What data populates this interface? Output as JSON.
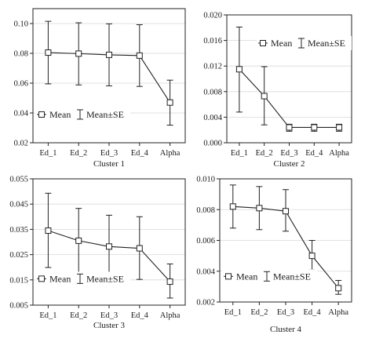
{
  "chart_data": [
    {
      "type": "line",
      "title": "Cluster 1",
      "categories": [
        "Ed_1",
        "Ed_2",
        "Ed_3",
        "Ed_4",
        "Alpha"
      ],
      "series": [
        {
          "values": [
            0.0805,
            0.0798,
            0.079,
            0.0785,
            0.047
          ],
          "err_low": [
            0.0595,
            0.0588,
            0.0582,
            0.0578,
            0.0318
          ],
          "err_high": [
            0.1015,
            0.1005,
            0.0998,
            0.0992,
            0.062
          ]
        }
      ],
      "yticks": [
        "0.02",
        "0.04",
        "0.06",
        "0.08",
        "0.10"
      ],
      "ylim": [
        0.02,
        0.11
      ],
      "grid": true,
      "legend": {
        "mean_label": "Mean",
        "se_label": "Mean±SE",
        "position": "bottom-left"
      }
    },
    {
      "type": "line",
      "title": "Cluster 2",
      "categories": [
        "Ed_1",
        "Ed_2",
        "Ed_3",
        "Ed_4",
        "Alpha"
      ],
      "series": [
        {
          "values": [
            0.0115,
            0.0073,
            0.0024,
            0.0024,
            0.0024
          ],
          "err_low": [
            0.0048,
            0.0028,
            0.0018,
            0.0018,
            0.0018
          ],
          "err_high": [
            0.0181,
            0.0119,
            0.0029,
            0.0029,
            0.0029
          ]
        }
      ],
      "yticks": [
        "0.000",
        "0.004",
        "0.008",
        "0.012",
        "0.016",
        "0.020"
      ],
      "ylim": [
        0.0,
        0.02
      ],
      "grid": true,
      "legend": {
        "mean_label": "Mean",
        "se_label": "Mean±SE",
        "position": "top-right"
      }
    },
    {
      "type": "line",
      "title": "Cluster 3",
      "categories": [
        "Ed_1",
        "Ed_2",
        "Ed_3",
        "Ed_4",
        "Alpha"
      ],
      "series": [
        {
          "values": [
            0.0345,
            0.0305,
            0.0282,
            0.0275,
            0.0143
          ],
          "err_low": [
            0.0199,
            0.0178,
            0.0158,
            0.0152,
            0.0078
          ],
          "err_high": [
            0.0493,
            0.0433,
            0.0406,
            0.04,
            0.0213
          ]
        }
      ],
      "yticks": [
        "0.005",
        "0.015",
        "0.025",
        "0.035",
        "0.045",
        "0.055"
      ],
      "ylim": [
        0.005,
        0.055
      ],
      "grid": true,
      "legend": {
        "mean_label": "Mean",
        "se_label": "Mean±SE",
        "position": "bottom-left"
      }
    },
    {
      "type": "line",
      "title": "Cluster 4",
      "categories": [
        "Ed_1",
        "Ed_2",
        "Ed_3",
        "Ed_4",
        "Alpha"
      ],
      "series": [
        {
          "values": [
            0.0082,
            0.0081,
            0.0079,
            0.005,
            0.0029
          ],
          "err_low": [
            0.0068,
            0.0067,
            0.0066,
            0.0041,
            0.0025
          ],
          "err_high": [
            0.0096,
            0.0095,
            0.0093,
            0.006,
            0.0034
          ]
        }
      ],
      "yticks": [
        "0.002",
        "0.004",
        "0.006",
        "0.008",
        "0.010"
      ],
      "ylim": [
        0.002,
        0.01
      ],
      "grid": true,
      "legend": {
        "mean_label": "Mean",
        "se_label": "Mean±SE",
        "position": "bottom-left"
      }
    }
  ]
}
